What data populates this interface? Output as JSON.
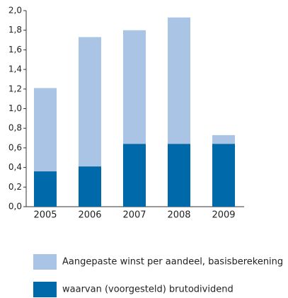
{
  "chart_data": {
    "type": "bar",
    "overlay": true,
    "categories": [
      "2005",
      "2006",
      "2007",
      "2008",
      "2009"
    ],
    "series": [
      {
        "name": "Aangepaste winst per aandeel, basisberekening",
        "color": "#a9c4e4",
        "values": [
          1.21,
          1.73,
          1.8,
          1.93,
          0.73
        ]
      },
      {
        "name": "waarvan (voorgesteld) brutodividend",
        "color": "#0069aa",
        "values": [
          0.36,
          0.41,
          0.64,
          0.64,
          0.64
        ]
      }
    ],
    "ylim": [
      0,
      2
    ],
    "yticks": [
      {
        "value": 0,
        "label": "0,0"
      },
      {
        "value": 0.2,
        "label": "0,2"
      },
      {
        "value": 0.4,
        "label": "0,4"
      },
      {
        "value": 0.6,
        "label": "0,6"
      },
      {
        "value": 0.8,
        "label": "0,8"
      },
      {
        "value": 1,
        "label": "1,0"
      },
      {
        "value": 1.2,
        "label": "1,2"
      },
      {
        "value": 1.4,
        "label": "1,4"
      },
      {
        "value": 1.6,
        "label": "1,6"
      },
      {
        "value": 1.8,
        "label": "1,8"
      },
      {
        "value": 2,
        "label": "2,0"
      }
    ]
  }
}
